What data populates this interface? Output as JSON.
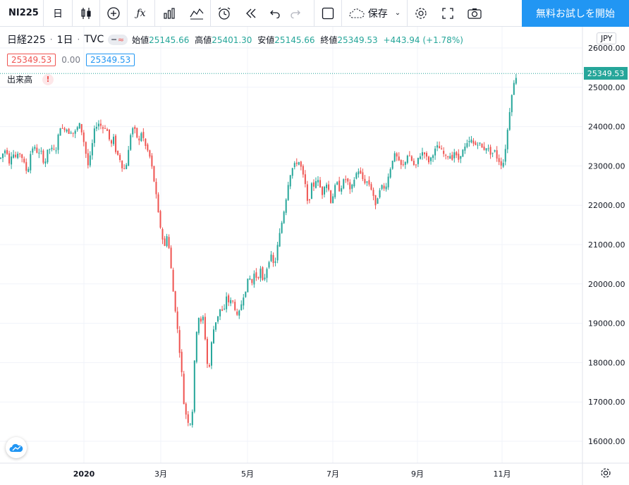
{
  "toolbar": {
    "symbol": "NI225",
    "interval": "日",
    "save_label": "保存",
    "cta_label": "無料お試しを開始"
  },
  "legend": {
    "name": "日経225",
    "interval": "1日",
    "source": "TVC",
    "open_label": "始値",
    "open": "25145.66",
    "high_label": "高値",
    "high": "25401.30",
    "low_label": "安値",
    "low": "25145.66",
    "close_label": "終値",
    "close": "25349.53",
    "change": "+443.94 (+1.78%)",
    "bid": "25349.53",
    "spread": "0.00",
    "ask": "25349.53",
    "volume_label": "出来高",
    "warning": "!"
  },
  "currency": "JPY",
  "last_price": "25349.53",
  "colors": {
    "up": "#26a69a",
    "down": "#ef5350",
    "accent": "#2196f3"
  },
  "chart_data": {
    "type": "candlestick",
    "x_ticks": [
      "2020",
      "3月",
      "5月",
      "7月",
      "9月",
      "11月"
    ],
    "y_ticks": [
      "26000.00",
      "25000.00",
      "24000.00",
      "23000.00",
      "22000.00",
      "21000.00",
      "20000.00",
      "19000.00",
      "18000.00",
      "17000.00",
      "16000.00"
    ],
    "ylim": [
      15550,
      26300
    ],
    "last_price": 25349.53,
    "path": [
      [
        0,
        23200
      ],
      [
        4,
        23350
      ],
      [
        8,
        23450
      ],
      [
        12,
        23100
      ],
      [
        16,
        23350
      ],
      [
        22,
        23200
      ],
      [
        28,
        23350
      ],
      [
        34,
        23000
      ],
      [
        38,
        22800
      ],
      [
        42,
        23300
      ],
      [
        46,
        23500
      ],
      [
        50,
        23400
      ],
      [
        54,
        23300
      ],
      [
        58,
        23350
      ],
      [
        62,
        23000
      ],
      [
        66,
        23350
      ],
      [
        70,
        23450
      ],
      [
        74,
        23400
      ],
      [
        78,
        23380
      ],
      [
        82,
        23800
      ],
      [
        85,
        24050
      ],
      [
        88,
        23900
      ],
      [
        92,
        24000
      ],
      [
        96,
        23850
      ],
      [
        100,
        23900
      ],
      [
        104,
        23800
      ],
      [
        108,
        23950
      ],
      [
        112,
        24050
      ],
      [
        116,
        23800
      ],
      [
        120,
        23400
      ],
      [
        124,
        23000
      ],
      [
        128,
        23300
      ],
      [
        132,
        23850
      ],
      [
        136,
        24050
      ],
      [
        140,
        24100
      ],
      [
        144,
        23950
      ],
      [
        148,
        24000
      ],
      [
        152,
        23850
      ],
      [
        156,
        23500
      ],
      [
        160,
        23700
      ],
      [
        164,
        23300
      ],
      [
        168,
        23250
      ],
      [
        172,
        23000
      ],
      [
        176,
        22900
      ],
      [
        180,
        23200
      ],
      [
        184,
        23800
      ],
      [
        188,
        24000
      ],
      [
        192,
        23800
      ],
      [
        196,
        23600
      ],
      [
        200,
        23900
      ],
      [
        204,
        23550
      ],
      [
        208,
        23400
      ],
      [
        212,
        23200
      ],
      [
        216,
        22800
      ],
      [
        220,
        22300
      ],
      [
        224,
        21700
      ],
      [
        228,
        21300
      ],
      [
        232,
        20900
      ],
      [
        236,
        21300
      ],
      [
        240,
        20700
      ],
      [
        244,
        19900
      ],
      [
        248,
        19300
      ],
      [
        252,
        18600
      ],
      [
        256,
        17900
      ],
      [
        260,
        16900
      ],
      [
        264,
        16600
      ],
      [
        268,
        16400
      ],
      [
        272,
        16800
      ],
      [
        276,
        18500
      ],
      [
        280,
        19200
      ],
      [
        284,
        19000
      ],
      [
        288,
        19200
      ],
      [
        292,
        18000
      ],
      [
        296,
        17900
      ],
      [
        300,
        18700
      ],
      [
        304,
        19000
      ],
      [
        308,
        19200
      ],
      [
        312,
        19400
      ],
      [
        316,
        19200
      ],
      [
        320,
        19700
      ],
      [
        324,
        19500
      ],
      [
        328,
        19600
      ],
      [
        332,
        19400
      ],
      [
        336,
        19100
      ],
      [
        340,
        19400
      ],
      [
        344,
        19700
      ],
      [
        348,
        19900
      ],
      [
        352,
        20200
      ],
      [
        356,
        20000
      ],
      [
        360,
        20300
      ],
      [
        364,
        20100
      ],
      [
        368,
        20400
      ],
      [
        372,
        20000
      ],
      [
        376,
        20300
      ],
      [
        380,
        20600
      ],
      [
        384,
        20700
      ],
      [
        388,
        20400
      ],
      [
        392,
        20900
      ],
      [
        396,
        21300
      ],
      [
        400,
        21700
      ],
      [
        404,
        22100
      ],
      [
        408,
        22600
      ],
      [
        412,
        22900
      ],
      [
        416,
        23000
      ],
      [
        420,
        23100
      ],
      [
        424,
        23100
      ],
      [
        428,
        22800
      ],
      [
        432,
        22500
      ],
      [
        436,
        21900
      ],
      [
        440,
        22500
      ],
      [
        444,
        22500
      ],
      [
        448,
        22700
      ],
      [
        452,
        22500
      ],
      [
        456,
        22300
      ],
      [
        460,
        22600
      ],
      [
        464,
        22500
      ],
      [
        468,
        22100
      ],
      [
        472,
        22300
      ],
      [
        476,
        22600
      ],
      [
        480,
        22400
      ],
      [
        484,
        22500
      ],
      [
        488,
        22700
      ],
      [
        492,
        22600
      ],
      [
        496,
        22300
      ],
      [
        500,
        22600
      ],
      [
        504,
        22800
      ],
      [
        508,
        22900
      ],
      [
        512,
        22700
      ],
      [
        516,
        22600
      ],
      [
        520,
        22600
      ],
      [
        524,
        22500
      ],
      [
        528,
        22300
      ],
      [
        532,
        21900
      ],
      [
        536,
        22400
      ],
      [
        540,
        22500
      ],
      [
        544,
        22400
      ],
      [
        548,
        22600
      ],
      [
        552,
        22900
      ],
      [
        556,
        23200
      ],
      [
        560,
        23300
      ],
      [
        564,
        23100
      ],
      [
        568,
        23000
      ],
      [
        572,
        23000
      ],
      [
        576,
        23300
      ],
      [
        580,
        23200
      ],
      [
        584,
        23100
      ],
      [
        588,
        22900
      ],
      [
        592,
        23200
      ],
      [
        596,
        23300
      ],
      [
        600,
        23400
      ],
      [
        604,
        23200
      ],
      [
        608,
        23100
      ],
      [
        612,
        23300
      ],
      [
        616,
        23400
      ],
      [
        620,
        23500
      ],
      [
        624,
        23400
      ],
      [
        628,
        23300
      ],
      [
        632,
        23200
      ],
      [
        636,
        23300
      ],
      [
        640,
        23200
      ],
      [
        644,
        23400
      ],
      [
        648,
        23100
      ],
      [
        652,
        23300
      ],
      [
        656,
        23400
      ],
      [
        660,
        23500
      ],
      [
        664,
        23600
      ],
      [
        668,
        23650
      ],
      [
        672,
        23500
      ],
      [
        676,
        23600
      ],
      [
        680,
        23550
      ],
      [
        684,
        23400
      ],
      [
        688,
        23500
      ],
      [
        692,
        23400
      ],
      [
        696,
        23300
      ],
      [
        700,
        23400
      ],
      [
        704,
        23200
      ],
      [
        708,
        23100
      ],
      [
        712,
        23000
      ],
      [
        716,
        23500
      ],
      [
        720,
        24100
      ],
      [
        724,
        24800
      ],
      [
        728,
        25100
      ],
      [
        732,
        25349
      ]
    ]
  }
}
